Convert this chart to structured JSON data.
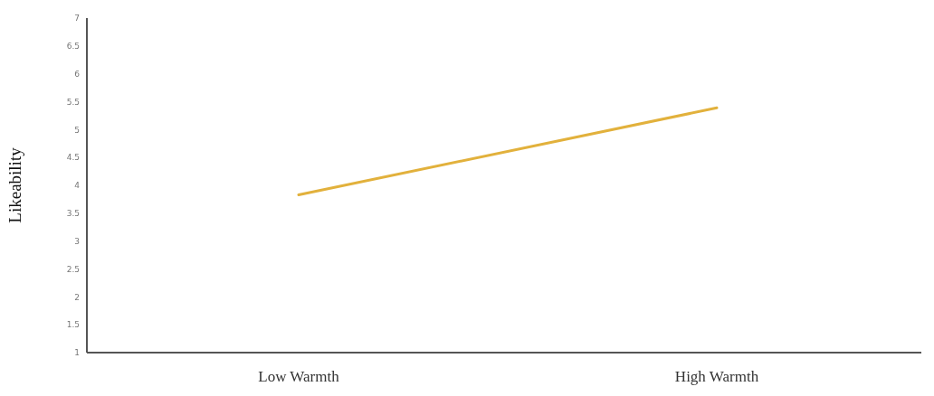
{
  "chart_data": {
    "type": "line",
    "ylabel": "Likeability",
    "categories": [
      "Low Warmth",
      "High Warmth"
    ],
    "series": [
      {
        "color": "#e2b13c",
        "values": [
          3.83,
          5.39
        ]
      }
    ],
    "ylim": [
      1,
      7
    ],
    "yticks": [
      1,
      1.5,
      2,
      2.5,
      3,
      3.5,
      4,
      4.5,
      5,
      5.5,
      6,
      6.5,
      7
    ],
    "grid": false,
    "legend": false,
    "marker": "none",
    "line_style": "solid"
  }
}
